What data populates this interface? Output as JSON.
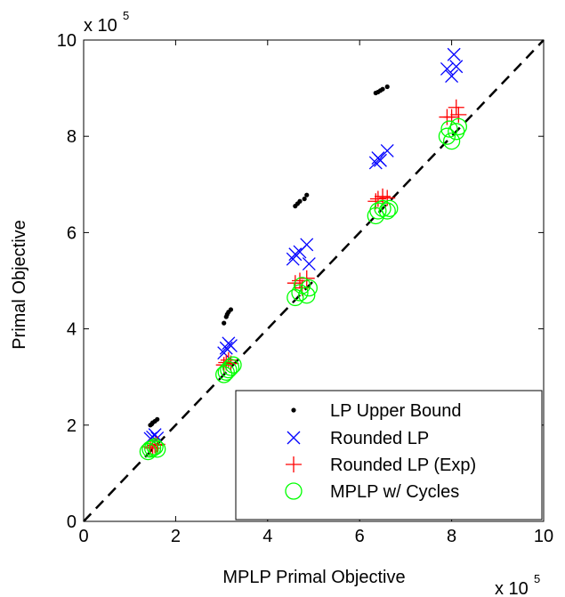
{
  "chart_data": {
    "type": "scatter",
    "title": "",
    "xlabel": "MPLP Primal Objective",
    "ylabel": "Primal Objective",
    "x_exponent_label": {
      "base": "x 10",
      "exp": "5"
    },
    "y_exponent_label": {
      "base": "x 10",
      "exp": "5"
    },
    "xlim": [
      0,
      10
    ],
    "ylim": [
      0,
      10
    ],
    "xticks": [
      0,
      2,
      4,
      6,
      8,
      10
    ],
    "yticks": [
      0,
      2,
      4,
      6,
      8,
      10
    ],
    "xtick_labels": [
      "0",
      "2",
      "4",
      "6",
      "8",
      "10"
    ],
    "ytick_labels": [
      "0",
      "2",
      "4",
      "6",
      "8",
      "10"
    ],
    "grid": false,
    "legend_position": "bottom-right",
    "reference_line": {
      "style": "dashed",
      "color": "#000000",
      "x": [
        0,
        10
      ],
      "y": [
        0,
        10
      ]
    },
    "series": [
      {
        "name": "LP Upper Bound",
        "marker": "dot",
        "color": "#000000",
        "points": [
          [
            1.45,
            2.0
          ],
          [
            1.5,
            2.05
          ],
          [
            1.55,
            2.08
          ],
          [
            1.6,
            2.12
          ],
          [
            1.48,
            2.02
          ],
          [
            3.05,
            4.12
          ],
          [
            3.1,
            4.25
          ],
          [
            3.15,
            4.35
          ],
          [
            3.2,
            4.4
          ],
          [
            3.12,
            4.3
          ],
          [
            4.6,
            6.55
          ],
          [
            4.65,
            6.6
          ],
          [
            4.7,
            6.65
          ],
          [
            4.8,
            6.7
          ],
          [
            4.85,
            6.78
          ],
          [
            6.35,
            8.9
          ],
          [
            6.4,
            8.92
          ],
          [
            6.45,
            8.95
          ],
          [
            6.5,
            8.98
          ],
          [
            6.6,
            9.03
          ]
        ]
      },
      {
        "name": "Rounded LP",
        "marker": "x",
        "color": "#0000ff",
        "points": [
          [
            1.45,
            1.72
          ],
          [
            1.5,
            1.75
          ],
          [
            1.55,
            1.8
          ],
          [
            1.6,
            1.73
          ],
          [
            3.05,
            3.5
          ],
          [
            3.1,
            3.6
          ],
          [
            3.15,
            3.7
          ],
          [
            3.2,
            3.65
          ],
          [
            4.55,
            5.45
          ],
          [
            4.6,
            5.55
          ],
          [
            4.7,
            5.6
          ],
          [
            4.85,
            5.75
          ],
          [
            4.9,
            5.35
          ],
          [
            6.35,
            7.45
          ],
          [
            6.4,
            7.55
          ],
          [
            6.45,
            7.5
          ],
          [
            6.6,
            7.7
          ],
          [
            7.9,
            9.4
          ],
          [
            8.0,
            9.25
          ],
          [
            8.05,
            9.7
          ],
          [
            8.1,
            9.45
          ]
        ]
      },
      {
        "name": "Rounded LP (Exp)",
        "marker": "plus",
        "color": "#ff0000",
        "points": [
          [
            1.45,
            1.55
          ],
          [
            1.5,
            1.52
          ],
          [
            1.55,
            1.58
          ],
          [
            1.6,
            1.6
          ],
          [
            3.05,
            3.25
          ],
          [
            3.1,
            3.3
          ],
          [
            3.15,
            3.35
          ],
          [
            3.2,
            3.28
          ],
          [
            4.6,
            4.95
          ],
          [
            4.7,
            5.0
          ],
          [
            4.75,
            4.85
          ],
          [
            4.85,
            5.05
          ],
          [
            6.35,
            6.65
          ],
          [
            6.4,
            6.7
          ],
          [
            6.5,
            6.75
          ],
          [
            6.6,
            6.72
          ],
          [
            7.9,
            8.4
          ],
          [
            8.0,
            8.4
          ],
          [
            8.1,
            8.6
          ],
          [
            8.15,
            8.45
          ]
        ]
      },
      {
        "name": "MPLP w/ Cycles",
        "marker": "circle",
        "color": "#00ff00",
        "points": [
          [
            1.4,
            1.45
          ],
          [
            1.45,
            1.5
          ],
          [
            1.5,
            1.52
          ],
          [
            1.55,
            1.55
          ],
          [
            1.6,
            1.5
          ],
          [
            3.05,
            3.05
          ],
          [
            3.1,
            3.1
          ],
          [
            3.15,
            3.15
          ],
          [
            3.2,
            3.2
          ],
          [
            3.25,
            3.25
          ],
          [
            4.6,
            4.65
          ],
          [
            4.7,
            4.75
          ],
          [
            4.75,
            4.9
          ],
          [
            4.85,
            4.7
          ],
          [
            4.9,
            4.85
          ],
          [
            6.35,
            6.35
          ],
          [
            6.4,
            6.45
          ],
          [
            6.5,
            6.5
          ],
          [
            6.6,
            6.45
          ],
          [
            6.65,
            6.5
          ],
          [
            7.9,
            8.0
          ],
          [
            7.95,
            8.15
          ],
          [
            8.0,
            7.9
          ],
          [
            8.1,
            8.1
          ],
          [
            8.15,
            8.2
          ]
        ]
      }
    ]
  }
}
